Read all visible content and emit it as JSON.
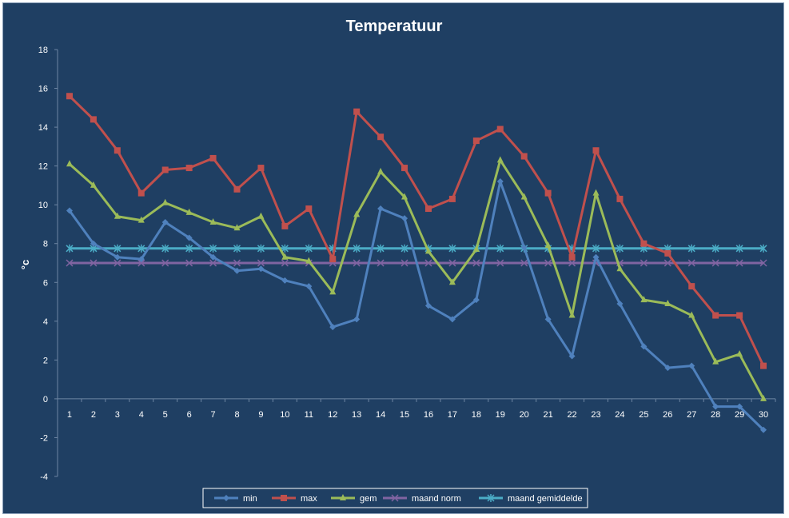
{
  "chart_data": {
    "type": "line",
    "title": "Temperatuur",
    "xlabel": "",
    "ylabel": "°c",
    "ylim": [
      -4,
      18
    ],
    "yticks": [
      -4,
      -2,
      0,
      2,
      4,
      6,
      8,
      10,
      12,
      14,
      16,
      18
    ],
    "grid": false,
    "legend_position": "bottom",
    "x": [
      1,
      2,
      3,
      4,
      5,
      6,
      7,
      8,
      9,
      10,
      11,
      12,
      13,
      14,
      15,
      16,
      17,
      18,
      19,
      20,
      21,
      22,
      23,
      24,
      25,
      26,
      27,
      28,
      29,
      30
    ],
    "series": [
      {
        "name": "min",
        "color": "#4f81bd",
        "marker": "diamond",
        "values": [
          9.7,
          8.0,
          7.3,
          7.2,
          9.1,
          8.3,
          7.3,
          6.6,
          6.7,
          6.1,
          5.8,
          3.7,
          4.1,
          9.8,
          9.3,
          4.8,
          4.1,
          5.1,
          11.2,
          7.8,
          4.1,
          2.2,
          7.3,
          4.9,
          2.7,
          1.6,
          1.7,
          -0.4,
          -0.4,
          -1.6
        ]
      },
      {
        "name": "max",
        "color": "#c0504d",
        "marker": "square",
        "values": [
          15.6,
          14.4,
          12.8,
          10.6,
          11.8,
          11.9,
          12.4,
          10.8,
          11.9,
          8.9,
          9.8,
          7.2,
          14.8,
          13.5,
          11.9,
          9.8,
          10.3,
          13.3,
          13.9,
          12.5,
          10.6,
          7.3,
          12.8,
          10.3,
          8.0,
          7.5,
          5.8,
          4.3,
          4.3,
          1.7
        ]
      },
      {
        "name": "gem",
        "color": "#9bbb59",
        "marker": "triangle",
        "values": [
          12.1,
          11.0,
          9.4,
          9.2,
          10.1,
          9.6,
          9.1,
          8.8,
          9.4,
          7.3,
          7.1,
          5.5,
          9.5,
          11.7,
          10.4,
          7.6,
          6.0,
          7.7,
          12.3,
          10.4,
          7.9,
          4.3,
          10.6,
          6.7,
          5.1,
          4.9,
          4.3,
          1.9,
          2.3,
          0.0
        ]
      },
      {
        "name": "maand norm",
        "color": "#8064a2",
        "marker": "x",
        "values": [
          7.0,
          7.0,
          7.0,
          7.0,
          7.0,
          7.0,
          7.0,
          7.0,
          7.0,
          7.0,
          7.0,
          7.0,
          7.0,
          7.0,
          7.0,
          7.0,
          7.0,
          7.0,
          7.0,
          7.0,
          7.0,
          7.0,
          7.0,
          7.0,
          7.0,
          7.0,
          7.0,
          7.0,
          7.0,
          7.0
        ]
      },
      {
        "name": "maand gemiddelde",
        "color": "#4bacc6",
        "marker": "star",
        "values": [
          7.75,
          7.75,
          7.75,
          7.75,
          7.75,
          7.75,
          7.75,
          7.75,
          7.75,
          7.75,
          7.75,
          7.75,
          7.75,
          7.75,
          7.75,
          7.75,
          7.75,
          7.75,
          7.75,
          7.75,
          7.75,
          7.75,
          7.75,
          7.75,
          7.75,
          7.75,
          7.75,
          7.75,
          7.75,
          7.75
        ]
      }
    ]
  }
}
